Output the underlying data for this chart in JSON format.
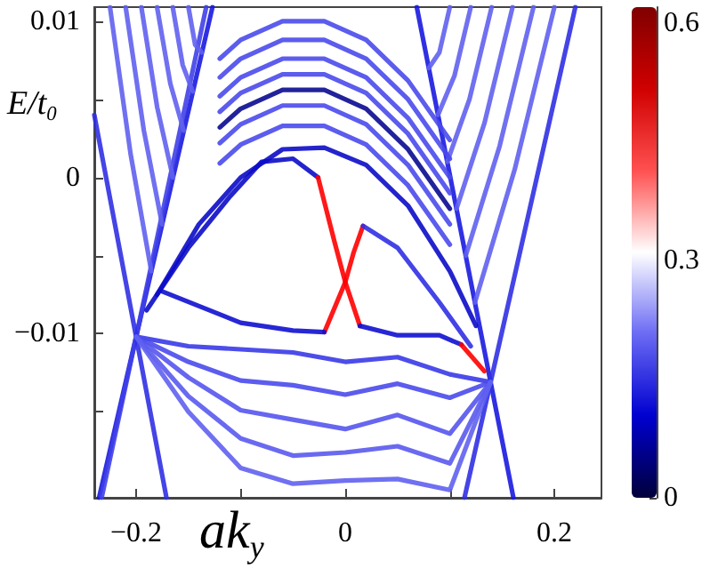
{
  "chart_data": {
    "type": "line",
    "xlabel": "ak$_{y}$",
    "ylabel": "E/t$_{0}$",
    "xlim": [
      -0.24,
      0.245
    ],
    "ylim": [
      -0.0205,
      0.0109
    ],
    "xticks": [
      {
        "value": -0.2,
        "label": "−0.2"
      },
      {
        "value": -0.1,
        "label": null
      },
      0,
      {
        "value": 0.1,
        "label": null
      },
      0.2
    ],
    "yticks": [
      {
        "value": -0.015,
        "label": null
      },
      {
        "value": -0.01,
        "label": "−0.01"
      },
      {
        "value": -0.005,
        "label": null
      },
      0,
      {
        "value": 0.005,
        "label": null
      },
      0.01
    ],
    "clim": [
      0,
      0.62
    ],
    "cticks": [
      0,
      0.3,
      0.6
    ],
    "series": [
      {
        "color": "#1a1ae0",
        "x": [
          -0.127,
          -0.2,
          -0.2355
        ],
        "values": [
          0.0109,
          -0.0102,
          -0.0205
        ]
      },
      {
        "color": "#4040e8",
        "x": [
          -0.133,
          -0.2,
          -0.233
        ],
        "values": [
          0.0109,
          -0.0102,
          -0.0205
        ]
      },
      {
        "color": "#3030e4",
        "x": [
          -0.24,
          -0.2,
          -0.171
        ],
        "values": [
          0.004,
          -0.0102,
          -0.0205
        ]
      },
      {
        "color": "#6060f0",
        "x": [
          -0.225,
          -0.2053,
          -0.1855
        ],
        "values": [
          0.0109,
          0.0015,
          -0.006
        ]
      },
      {
        "color": "#6060f0",
        "x": [
          -0.21,
          -0.1926,
          -0.1752
        ],
        "values": [
          0.0109,
          0.003,
          -0.003
        ]
      },
      {
        "color": "#6060f0",
        "x": [
          -0.195,
          -0.1799,
          -0.1648
        ],
        "values": [
          0.0109,
          0.0045,
          0
        ]
      },
      {
        "color": "#6060f0",
        "x": [
          -0.18,
          -0.1673,
          -0.1545
        ],
        "values": [
          0.0109,
          0.006,
          0.003
        ]
      },
      {
        "color": "#6060f0",
        "x": [
          -0.165,
          -0.1555,
          -0.1459
        ],
        "values": [
          0.0109,
          0.0072,
          0.0055
        ]
      },
      {
        "color": "#6060f0",
        "x": [
          -0.15,
          -0.1436,
          -0.1372
        ],
        "values": [
          0.0109,
          0.0085,
          0.008
        ]
      },
      {
        "color": "#1a1ae0",
        "x": [
          0.0684,
          0.139,
          0.1608
        ],
        "values": [
          0.0109,
          -0.0131,
          -0.0205
        ]
      },
      {
        "color": "#3030e4",
        "x": [
          0.22,
          0.139,
          0.114
        ],
        "values": [
          0.0109,
          -0.0131,
          -0.0205
        ]
      },
      {
        "color": "#6060f0",
        "x": [
          0.1,
          0.09,
          0.0799
        ],
        "values": [
          0.0109,
          0.008,
          0.007
        ]
      },
      {
        "color": "#6060f0",
        "x": [
          0.12,
          0.1044,
          0.0887
        ],
        "values": [
          0.0109,
          0.0065,
          0.004
        ]
      },
      {
        "color": "#6060f0",
        "x": [
          0.14,
          0.1188,
          0.0975
        ],
        "values": [
          0.0109,
          0.005,
          0.001
        ]
      },
      {
        "color": "#6060f0",
        "x": [
          0.16,
          0.1332,
          0.1064
        ],
        "values": [
          0.0109,
          0.0035,
          -0.002
        ]
      },
      {
        "color": "#6060f0",
        "x": [
          0.18,
          0.1476,
          0.1152
        ],
        "values": [
          0.0109,
          0.002,
          -0.005
        ]
      },
      {
        "color": "#6060f0",
        "x": [
          0.2,
          0.162,
          0.124
        ],
        "values": [
          0.0109,
          0.0005,
          -0.008
        ]
      },
      {
        "color": "#0c0cc8",
        "x": [
          -0.19,
          -0.15,
          -0.11,
          -0.08,
          -0.05,
          -0.026
        ],
        "values": [
          -0.0085,
          -0.0045,
          -0.0012,
          0.001,
          0.0012,
          0
        ]
      },
      {
        "color": "#ff0000",
        "x": [
          -0.026,
          -0.01,
          0,
          0.014
        ],
        "values": [
          0,
          -0.0042,
          -0.0067,
          -0.0095
        ]
      },
      {
        "color": "#1010d0",
        "x": [
          0.014,
          0.05,
          0.09,
          0.111
        ],
        "values": [
          -0.0095,
          -0.0101,
          -0.0101,
          -0.0107
        ]
      },
      {
        "color": "#ff0000",
        "x": [
          0.111,
          0.133
        ],
        "values": [
          -0.0107,
          -0.0124
        ]
      },
      {
        "color": "#ff0000",
        "x": [
          0.017,
          0.008,
          0,
          -0.02
        ],
        "values": [
          -0.0031,
          -0.0048,
          -0.0067,
          -0.0099
        ]
      },
      {
        "color": "#1010d0",
        "x": [
          -0.175,
          -0.1,
          -0.05,
          -0.02
        ],
        "values": [
          -0.0073,
          -0.0093,
          -0.0098,
          -0.0099
        ]
      },
      {
        "color": "#3030e4",
        "x": [
          0.017,
          0.05,
          0.09,
          0.12
        ],
        "values": [
          -0.0031,
          -0.0045,
          -0.008,
          -0.0108
        ]
      },
      {
        "color": "#0c0cc8",
        "x": [
          -0.18,
          -0.14,
          -0.1,
          -0.06,
          -0.02,
          0.02,
          0.06,
          0.1,
          0.125
        ],
        "values": [
          -0.0075,
          -0.003,
          0,
          0.0018,
          0.0019,
          0.0008,
          -0.0018,
          -0.006,
          -0.0095
        ]
      },
      {
        "color": "#4a4aec",
        "x": [
          -0.12,
          -0.1,
          -0.06,
          -0.02,
          0.02,
          0.06,
          0.1
        ],
        "values": [
          0.0009,
          0.0021,
          0.0033,
          0.0033,
          0.0021,
          -0.0005,
          -0.0043
        ]
      },
      {
        "color": "#4a4aec",
        "x": [
          -0.12,
          -0.1,
          -0.06,
          -0.02,
          0.02,
          0.06,
          0.1
        ],
        "values": [
          0.0022,
          0.0034,
          0.0046,
          0.0046,
          0.0034,
          0.0008,
          -0.003
        ]
      },
      {
        "color": "#0a0a90",
        "x": [
          -0.12,
          -0.1,
          -0.06,
          -0.02,
          0.02,
          0.06,
          0.1
        ],
        "values": [
          0.0032,
          0.0044,
          0.0056,
          0.0056,
          0.0044,
          0.0018,
          -0.002
        ]
      },
      {
        "color": "#4a4aec",
        "x": [
          -0.12,
          -0.1,
          -0.06,
          -0.02,
          0.02,
          0.06,
          0.1
        ],
        "values": [
          0.0042,
          0.0054,
          0.0066,
          0.0066,
          0.0054,
          0.0028,
          -0.001
        ]
      },
      {
        "color": "#4a4aec",
        "x": [
          -0.12,
          -0.1,
          -0.06,
          -0.02,
          0.02,
          0.06,
          0.1
        ],
        "values": [
          0.0052,
          0.0064,
          0.0076,
          0.0076,
          0.0064,
          0.0038,
          0
        ]
      },
      {
        "color": "#4a4aec",
        "x": [
          -0.12,
          -0.1,
          -0.06,
          -0.02,
          0.02,
          0.06,
          0.1
        ],
        "values": [
          0.0064,
          0.0076,
          0.0088,
          0.0088,
          0.0076,
          0.005,
          0.0012
        ]
      },
      {
        "color": "#4a4aec",
        "x": [
          -0.12,
          -0.1,
          -0.06,
          -0.02,
          0.02,
          0.06,
          0.1
        ],
        "values": [
          0.0076,
          0.0088,
          0.01,
          0.01,
          0.0088,
          0.0062,
          0.0024
        ]
      },
      {
        "color": "#3a3ae8",
        "x": [
          -0.2,
          -0.15,
          -0.1,
          -0.05,
          0,
          0.05,
          0.1,
          0.139
        ],
        "values": [
          -0.0102,
          -0.0108,
          -0.011,
          -0.0112,
          -0.0118,
          -0.0115,
          -0.0126,
          -0.0131
        ]
      },
      {
        "color": "#4a4aec",
        "x": [
          -0.2,
          -0.15,
          -0.1,
          -0.05,
          0,
          0.05,
          0.1,
          0.139
        ],
        "values": [
          -0.0102,
          -0.0118,
          -0.013,
          -0.0133,
          -0.0139,
          -0.0132,
          -0.0141,
          -0.0131
        ]
      },
      {
        "color": "#5555ee",
        "x": [
          -0.2,
          -0.15,
          -0.1,
          -0.05,
          0,
          0.05,
          0.1,
          0.139
        ],
        "values": [
          -0.0102,
          -0.0128,
          -0.0149,
          -0.0155,
          -0.0161,
          -0.0152,
          -0.0164,
          -0.0131
        ]
      },
      {
        "color": "#5a5aee",
        "x": [
          -0.2,
          -0.15,
          -0.1,
          -0.05,
          0,
          0.05,
          0.1,
          0.139
        ],
        "values": [
          -0.0102,
          -0.014,
          -0.0167,
          -0.0178,
          -0.0176,
          -0.0172,
          -0.0183,
          -0.0131
        ]
      },
      {
        "color": "#6060f0",
        "x": [
          -0.2,
          -0.15,
          -0.1,
          -0.05,
          0,
          0.05,
          0.1,
          0.139
        ],
        "values": [
          -0.0102,
          -0.015,
          -0.0186,
          -0.0196,
          -0.0194,
          -0.0193,
          -0.02,
          -0.0131
        ]
      }
    ]
  }
}
